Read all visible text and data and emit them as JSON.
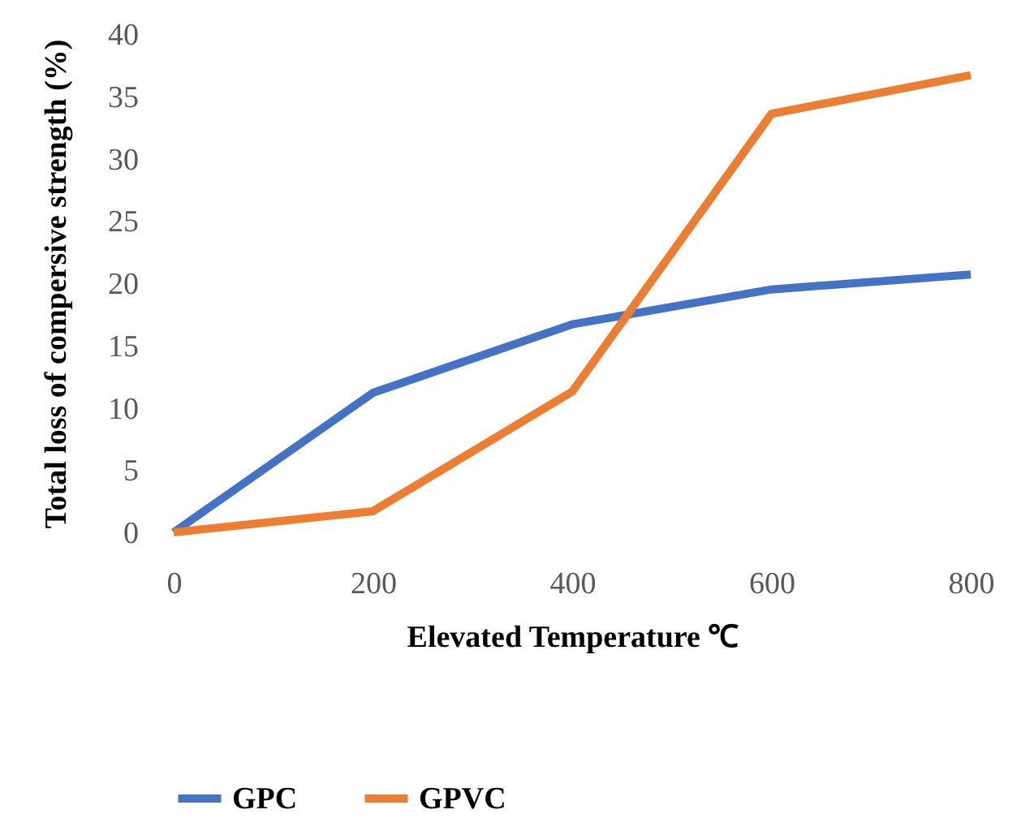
{
  "chart_data": {
    "type": "line",
    "xlabel": "Elevated Temperature ℃",
    "ylabel": "Total loss of compersive strength (%)",
    "categories": [
      "0",
      "200",
      "400",
      "600",
      "800"
    ],
    "series": [
      {
        "name": "GPC",
        "color": "#4472c4",
        "values": [
          0,
          11.2,
          16.7,
          19.5,
          20.7
        ]
      },
      {
        "name": "GPVC",
        "color": "#ed7d31",
        "values": [
          0,
          1.7,
          11.3,
          33.6,
          36.7
        ]
      }
    ],
    "ylim": [
      0,
      40
    ],
    "yticks": [
      0,
      5,
      10,
      15,
      20,
      25,
      30,
      35,
      40
    ],
    "grid": false,
    "legend": "bottom",
    "marker": "none",
    "line_style": "solid"
  }
}
